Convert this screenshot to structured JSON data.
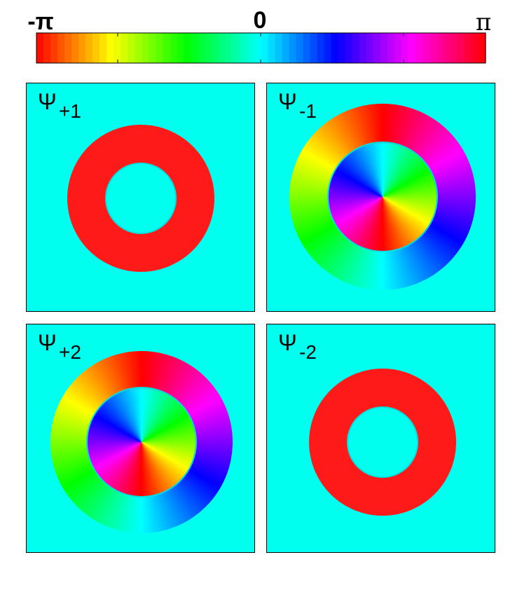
{
  "colorbar": {
    "labels": [
      "-π",
      "0",
      "π"
    ]
  },
  "panels": [
    {
      "symbol": "Ψ",
      "subscript": "+1"
    },
    {
      "symbol": "Ψ",
      "subscript": "-1"
    },
    {
      "symbol": "Ψ",
      "subscript": "+2"
    },
    {
      "symbol": "Ψ",
      "subscript": "-2"
    }
  ]
}
